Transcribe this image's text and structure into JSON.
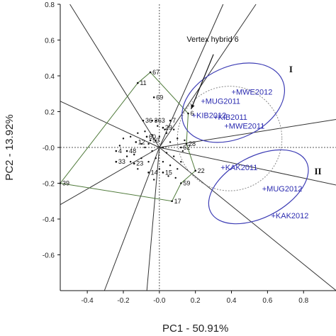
{
  "chart_data": {
    "type": "scatter",
    "xlabel": "PC1 - 50.91%",
    "ylabel": "PC2 - 13.92%",
    "xlim": [
      -0.55,
      0.98
    ],
    "ylim": [
      -0.8,
      0.8
    ],
    "x_ticks": [
      -0.4,
      -0.2,
      0.0,
      0.2,
      0.4,
      0.6,
      0.8
    ],
    "x_tick_labels": [
      "-0.4",
      "-0.2",
      "-0.0",
      "0.2",
      "0.4",
      "0.6",
      "0.8"
    ],
    "y_ticks": [
      0.8,
      0.6,
      0.4,
      0.2,
      0.0,
      -0.2,
      -0.4,
      -0.6
    ],
    "y_tick_labels": [
      "0.8",
      "0.6",
      "0.4",
      "0.2",
      "-0.0",
      "-0.2",
      "-0.4",
      "-0.6"
    ],
    "environments": [
      {
        "name": "MWE2012",
        "x": 0.4,
        "y": 0.31
      },
      {
        "name": "MUG2011",
        "x": 0.23,
        "y": 0.26
      },
      {
        "name": "KIB2012",
        "x": 0.18,
        "y": 0.18
      },
      {
        "name": "KIB2011",
        "x": 0.3,
        "y": 0.17
      },
      {
        "name": "MWE2011",
        "x": 0.36,
        "y": 0.12
      },
      {
        "name": "KAK2011",
        "x": 0.34,
        "y": -0.11
      },
      {
        "name": "MUG2012",
        "x": 0.57,
        "y": -0.23
      },
      {
        "name": "KAK2012",
        "x": 0.62,
        "y": -0.38
      }
    ],
    "genotypes_labeled": [
      {
        "label": "67",
        "x": -0.05,
        "y": 0.42
      },
      {
        "label": "11",
        "x": -0.12,
        "y": 0.36
      },
      {
        "label": "69",
        "x": -0.03,
        "y": 0.28
      },
      {
        "label": "36",
        "x": -0.09,
        "y": 0.15
      },
      {
        "label": "3",
        "x": -0.04,
        "y": 0.15
      },
      {
        "label": "63",
        "x": -0.02,
        "y": 0.15
      },
      {
        "label": "7",
        "x": 0.06,
        "y": 0.15
      },
      {
        "label": "6",
        "x": 0.16,
        "y": 0.19
      },
      {
        "label": "29",
        "x": 0.02,
        "y": 0.11
      },
      {
        "label": "60",
        "x": -0.07,
        "y": 0.06
      },
      {
        "label": "12",
        "x": -0.13,
        "y": 0.03
      },
      {
        "label": "53",
        "x": -0.05,
        "y": 0.04
      },
      {
        "label": "28",
        "x": 0.15,
        "y": 0.02
      },
      {
        "label": "62",
        "x": 0.12,
        "y": 0.0
      },
      {
        "label": "4",
        "x": -0.24,
        "y": -0.02
      },
      {
        "label": "48",
        "x": -0.18,
        "y": -0.02
      },
      {
        "label": "33",
        "x": -0.24,
        "y": -0.08
      },
      {
        "label": "23",
        "x": -0.14,
        "y": -0.09
      },
      {
        "label": "14",
        "x": -0.06,
        "y": -0.14
      },
      {
        "label": "15",
        "x": 0.02,
        "y": -0.14
      },
      {
        "label": "22",
        "x": 0.2,
        "y": -0.13
      },
      {
        "label": "59",
        "x": 0.12,
        "y": -0.2
      },
      {
        "label": "39",
        "x": -0.55,
        "y": -0.2
      },
      {
        "label": "17",
        "x": 0.07,
        "y": -0.3
      }
    ],
    "genotype_points_unlabeled": [
      [
        -0.2,
        0.05
      ],
      [
        -0.16,
        0.06
      ],
      [
        -0.12,
        0.08
      ],
      [
        -0.1,
        0.02
      ],
      [
        -0.08,
        0.0
      ],
      [
        -0.06,
        0.02
      ],
      [
        -0.04,
        -0.02
      ],
      [
        -0.02,
        0.04
      ],
      [
        0.0,
        0.06
      ],
      [
        0.02,
        0.0
      ],
      [
        0.04,
        -0.03
      ],
      [
        0.06,
        0.03
      ],
      [
        0.08,
        -0.05
      ],
      [
        0.1,
        0.05
      ],
      [
        0.12,
        -0.08
      ],
      [
        0.14,
        0.04
      ],
      [
        -0.18,
        -0.05
      ],
      [
        -0.14,
        -0.04
      ],
      [
        -0.1,
        -0.06
      ],
      [
        -0.06,
        -0.08
      ],
      [
        -0.02,
        -0.06
      ],
      [
        0.02,
        -0.08
      ],
      [
        0.06,
        -0.1
      ],
      [
        0.1,
        -0.12
      ],
      [
        -0.22,
        0.01
      ],
      [
        -0.16,
        -0.08
      ],
      [
        -0.08,
        0.09
      ],
      [
        -0.04,
        0.07
      ],
      [
        0.04,
        0.08
      ],
      [
        0.08,
        0.1
      ],
      [
        0.0,
        -0.12
      ],
      [
        0.05,
        -0.16
      ],
      [
        -0.12,
        -0.12
      ],
      [
        -0.03,
        -0.18
      ],
      [
        0.09,
        -0.17
      ],
      [
        0.13,
        -0.02
      ],
      [
        -0.01,
        0.12
      ],
      [
        0.03,
        0.1
      ]
    ],
    "polygon_vertices": [
      {
        "label": "67",
        "x": -0.05,
        "y": 0.42
      },
      {
        "label": "6",
        "x": 0.16,
        "y": 0.19
      },
      {
        "label": "28",
        "x": 0.15,
        "y": 0.02
      },
      {
        "label": "22",
        "x": 0.2,
        "y": -0.13
      },
      {
        "label": "59",
        "x": 0.12,
        "y": -0.2
      },
      {
        "label": "17",
        "x": 0.07,
        "y": -0.3
      },
      {
        "label": "39",
        "x": -0.55,
        "y": -0.2
      },
      {
        "label": "11",
        "x": -0.12,
        "y": 0.36
      }
    ],
    "rays_angle_deg": [
      122,
      155,
      66,
      56,
      9,
      -12,
      -39,
      -95,
      -111,
      -150
    ],
    "sector_labels": [
      {
        "label": "I",
        "x": 0.72,
        "y": 0.42
      },
      {
        "label": "II",
        "x": 0.86,
        "y": -0.15
      }
    ],
    "ellipses": [
      {
        "group": "I",
        "cx": 0.41,
        "cy": 0.25,
        "rx": 0.3,
        "ry": 0.2,
        "rotate_deg": -25
      },
      {
        "group": "II",
        "cx": 0.55,
        "cy": -0.22,
        "rx": 0.3,
        "ry": 0.17,
        "rotate_deg": -28
      }
    ],
    "dotted_circle": {
      "cx": 0.39,
      "cy": 0.05,
      "r": 0.29
    },
    "annotation": {
      "text": "Vertex hybrid 6",
      "target_x": 0.16,
      "target_y": 0.19,
      "text_x": 0.06,
      "text_y": 0.59
    }
  }
}
